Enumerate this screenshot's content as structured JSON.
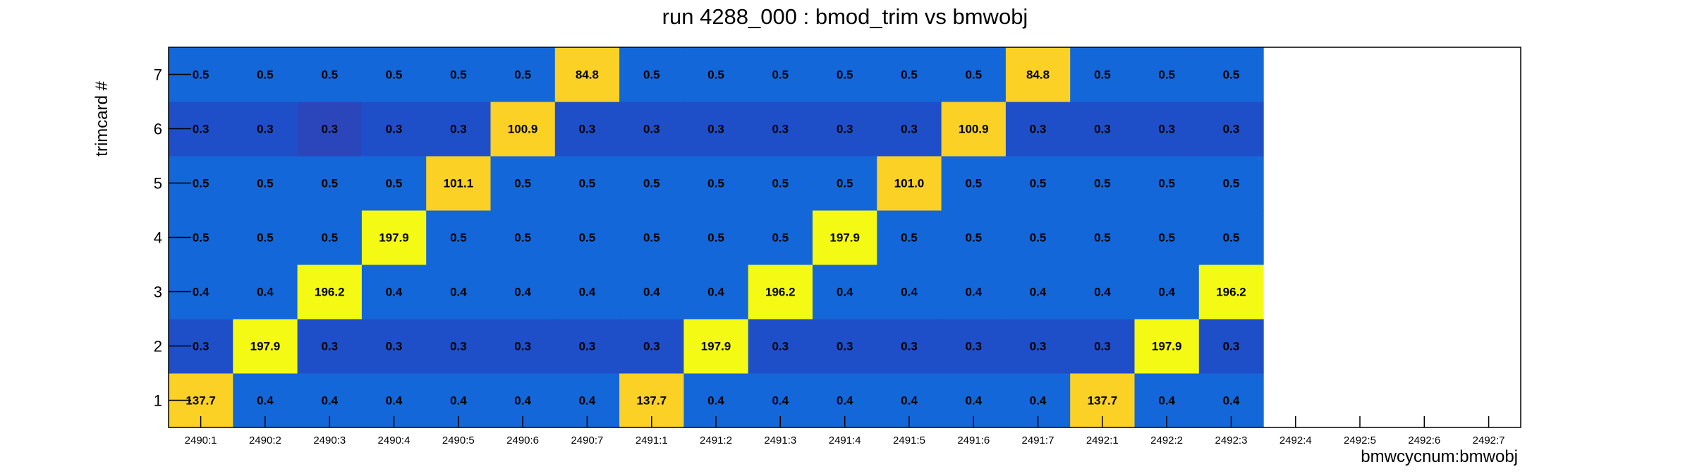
{
  "chart_data": {
    "type": "heatmap",
    "title": "run 4288_000 : bmod_trim vs bmwobj",
    "xlabel": "bmwcycnum:bmwobj",
    "ylabel": "trimcard #",
    "x_categories": [
      "2490:1",
      "2490:2",
      "2490:3",
      "2490:4",
      "2490:5",
      "2490:6",
      "2490:7",
      "2491:1",
      "2491:2",
      "2491:3",
      "2491:4",
      "2491:5",
      "2491:6",
      "2491:7",
      "2492:1",
      "2492:2",
      "2492:3",
      "2492:4",
      "2492:5",
      "2492:6",
      "2492:7"
    ],
    "y_categories": [
      "1",
      "2",
      "3",
      "4",
      "5",
      "6",
      "7"
    ],
    "filled_columns": 17,
    "grid": false,
    "colors": {
      "low_dark": "#2b46bb",
      "low": "#1f4fc8",
      "base": "#1467d8",
      "mid": "#fbd125",
      "high": "#f5fa14"
    },
    "values": {
      "7": [
        "0.5",
        "0.5",
        "0.5",
        "0.5",
        "0.5",
        "0.5",
        "84.8",
        "0.5",
        "0.5",
        "0.5",
        "0.5",
        "0.5",
        "0.5",
        "84.8",
        "0.5",
        "0.5",
        "0.5"
      ],
      "6": [
        "0.3",
        "0.3",
        "0.3",
        "0.3",
        "0.3",
        "100.9",
        "0.3",
        "0.3",
        "0.3",
        "0.3",
        "0.3",
        "0.3",
        "100.9",
        "0.3",
        "0.3",
        "0.3",
        "0.3"
      ],
      "5": [
        "0.5",
        "0.5",
        "0.5",
        "0.5",
        "101.1",
        "0.5",
        "0.5",
        "0.5",
        "0.5",
        "0.5",
        "0.5",
        "101.0",
        "0.5",
        "0.5",
        "0.5",
        "0.5",
        "0.5"
      ],
      "4": [
        "0.5",
        "0.5",
        "0.5",
        "197.9",
        "0.5",
        "0.5",
        "0.5",
        "0.5",
        "0.5",
        "0.5",
        "197.9",
        "0.5",
        "0.5",
        "0.5",
        "0.5",
        "0.5",
        "0.5"
      ],
      "3": [
        "0.4",
        "0.4",
        "196.2",
        "0.4",
        "0.4",
        "0.4",
        "0.4",
        "0.4",
        "0.4",
        "196.2",
        "0.4",
        "0.4",
        "0.4",
        "0.4",
        "0.4",
        "0.4",
        "196.2"
      ],
      "2": [
        "0.3",
        "197.9",
        "0.3",
        "0.3",
        "0.3",
        "0.3",
        "0.3",
        "0.3",
        "197.9",
        "0.3",
        "0.3",
        "0.3",
        "0.3",
        "0.3",
        "0.3",
        "197.9",
        "0.3"
      ],
      "1": [
        "137.7",
        "0.4",
        "0.4",
        "0.4",
        "0.4",
        "0.4",
        "0.4",
        "137.7",
        "0.4",
        "0.4",
        "0.4",
        "0.4",
        "0.4",
        "0.4",
        "137.7",
        "0.4",
        "0.4"
      ]
    }
  }
}
